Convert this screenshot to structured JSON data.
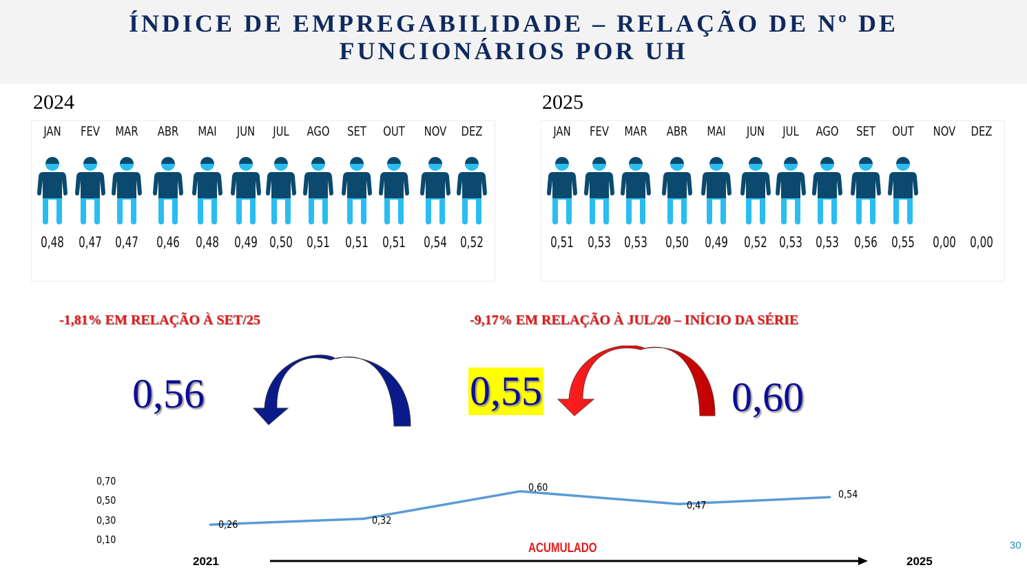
{
  "title_line1": "ÍNDICE DE EMPREGABILIDADE – RELAÇÃO DE Nº DE",
  "title_line2": "FUNCIONÁRIOS POR UH",
  "months": [
    "JAN",
    "FEV",
    "MAR",
    "ABR",
    "MAI",
    "JUN",
    "JUL",
    "AGO",
    "SET",
    "OUT",
    "NOV",
    "DEZ"
  ],
  "panel_2024": {
    "year": "2024",
    "values": [
      "0,48",
      "0,47",
      "0,47",
      "0,46",
      "0,48",
      "0,49",
      "0,50",
      "0,51",
      "0,51",
      "0,51",
      "0,54",
      "0,52"
    ]
  },
  "panel_2025": {
    "year": "2025",
    "values": [
      "0,51",
      "0,53",
      "0,53",
      "0,50",
      "0,49",
      "0,52",
      "0,53",
      "0,53",
      "0,56",
      "0,55",
      "0,00",
      "0,00"
    ],
    "figures_shown": 10
  },
  "colors": {
    "figure_dark": "#0b4a6e",
    "figure_light": "#29bdf0",
    "navy": "#0d0d96",
    "red": "#e31b1b",
    "highlight": "#ffff00",
    "line": "#5b9bd5"
  },
  "comparison": {
    "left_text": "-1,81% EM RELAÇÃO À SET/25",
    "right_text": "-9,17% EM RELAÇÃO À JUL/20 – INÍCIO DA SÉRIE",
    "prev_value": "0,56",
    "current_value": "0,55",
    "start_value": "0,60"
  },
  "chart_data": {
    "type": "line",
    "y_ticks": [
      "0,70",
      "0,50",
      "0,30",
      "0,10"
    ],
    "ylim": [
      0.1,
      0.7
    ],
    "values": [
      0.26,
      0.32,
      0.6,
      0.47,
      0.54
    ],
    "labels": [
      "0,26",
      "0,32",
      "0,60",
      "0,47",
      "0,54"
    ],
    "x_start": "2021",
    "x_end": "2025",
    "xlabel": "ACUMULADO"
  },
  "page_number": "30"
}
